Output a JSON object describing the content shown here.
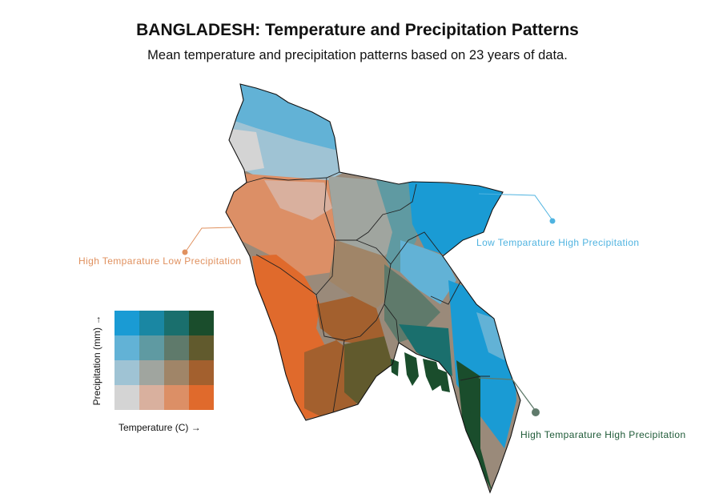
{
  "title": "BANGLADESH: Temperature and Precipitation Patterns",
  "subtitle": "Mean temperature and precipitation patterns based on 23 years of data.",
  "annotations": {
    "low_temp_high_precip": {
      "label": "Low Temparature High Precipitation",
      "color": "#4fb3e0"
    },
    "high_temp_low_precip": {
      "label": "High Temparature Low Precipitation",
      "color": "#e0915f"
    },
    "high_temp_high_precip": {
      "label": "High Temparature High Precipitation",
      "color": "#1e5a37"
    }
  },
  "legend": {
    "x_label": "Temperature (C) →",
    "y_label": "Precipitation (mm) →",
    "palette_rows_top_to_bottom": [
      [
        "#1a9bd4",
        "#1a87a3",
        "#1a6f6d",
        "#1a4d2c"
      ],
      [
        "#62b2d6",
        "#5f9aa2",
        "#5f7a6b",
        "#615a2d"
      ],
      [
        "#9fc3d4",
        "#a0a59f",
        "#a08568",
        "#a3602e"
      ],
      [
        "#d4d4d4",
        "#d9b09e",
        "#dc8f66",
        "#e06a2c"
      ]
    ]
  }
}
